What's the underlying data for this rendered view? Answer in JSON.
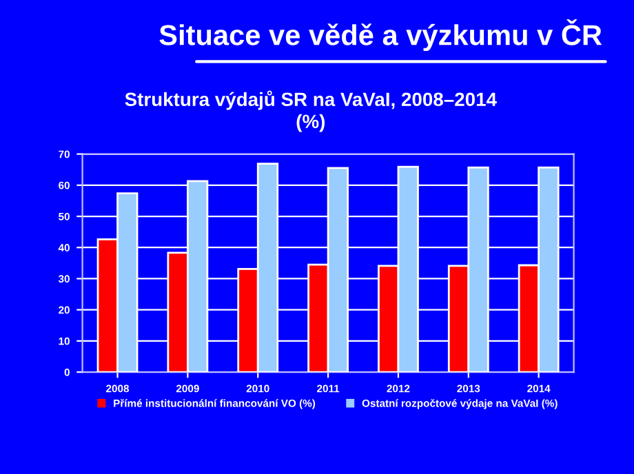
{
  "chart_data": {
    "type": "bar",
    "title": "Situace ve vědě a výzkumu v ČR",
    "subtitle": "Struktura výdajů SR na VaVaI, 2008–2014\n(%)",
    "categories": [
      "2008",
      "2009",
      "2010",
      "2011",
      "2012",
      "2013",
      "2014"
    ],
    "series": [
      {
        "name": "Přímé institucionální financování VO (%)",
        "color": "#ff0000",
        "values": [
          42.6,
          38.3,
          33.1,
          34.5,
          34.1,
          34.1,
          34.3
        ]
      },
      {
        "name": "Ostatní rozpočtové výdaje na VaVaI (%)",
        "color": "#99ccff",
        "values": [
          57.4,
          61.3,
          66.9,
          65.5,
          65.9,
          65.7,
          65.7
        ]
      }
    ],
    "ylim": [
      0,
      70
    ],
    "yticks": [
      0,
      10,
      20,
      30,
      40,
      50,
      60,
      70
    ],
    "grid": "y",
    "legend": "bottom"
  }
}
